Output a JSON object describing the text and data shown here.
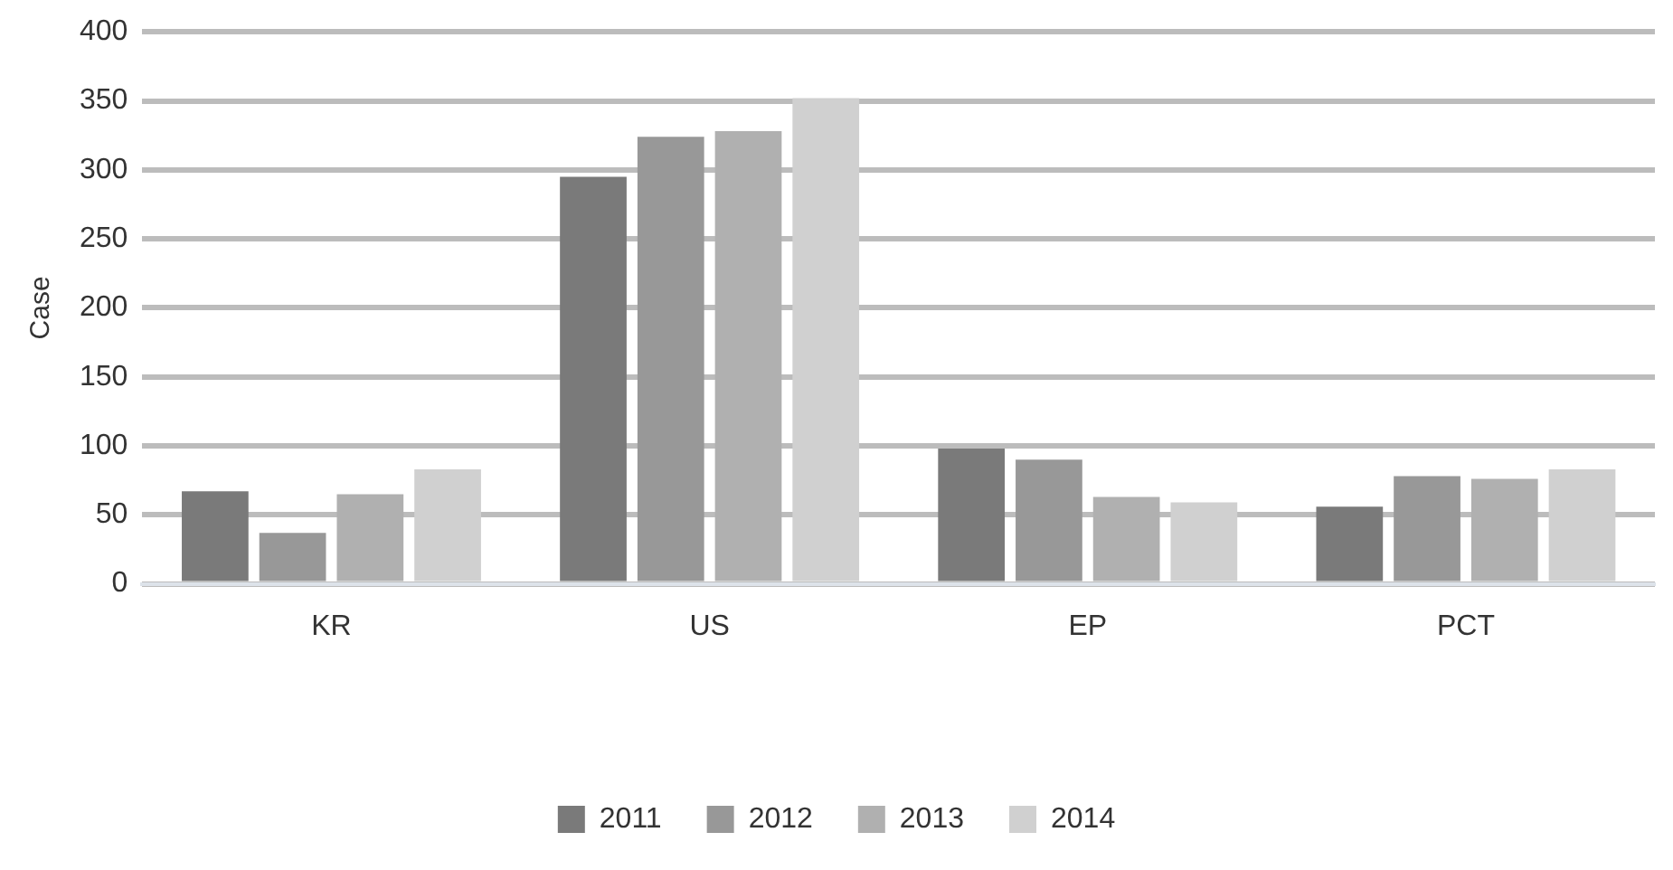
{
  "chart_data": {
    "type": "bar",
    "ylabel": "Case",
    "categories": [
      "KR",
      "US",
      "EP",
      "PCT"
    ],
    "series": [
      {
        "name": "2011",
        "color": "#7a7a7a",
        "values": [
          67,
          295,
          98,
          56
        ]
      },
      {
        "name": "2012",
        "color": "#989898",
        "values": [
          37,
          324,
          90,
          78
        ]
      },
      {
        "name": "2013",
        "color": "#b0b0b0",
        "values": [
          65,
          328,
          63,
          76
        ]
      },
      {
        "name": "2014",
        "color": "#d0d0d0",
        "values": [
          83,
          352,
          59,
          83
        ]
      }
    ],
    "ylim": [
      0,
      400
    ],
    "yticks": [
      0,
      50,
      100,
      150,
      200,
      250,
      300,
      350,
      400
    ],
    "grid": "y",
    "legend": "bottom"
  }
}
